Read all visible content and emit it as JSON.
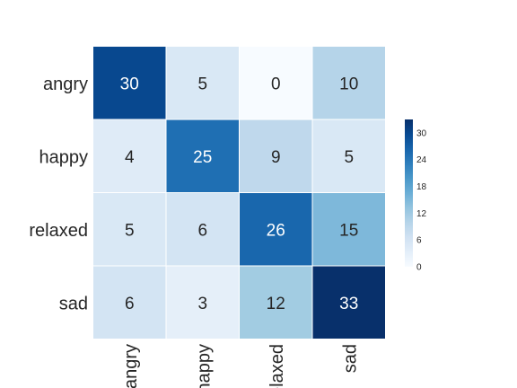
{
  "chart_data": {
    "type": "heatmap",
    "title": "",
    "xlabel": "",
    "ylabel": "",
    "rows": [
      "angry",
      "happy",
      "relaxed",
      "sad"
    ],
    "columns": [
      "angry",
      "happy",
      "relaxed",
      "sad"
    ],
    "values": [
      [
        30,
        5,
        0,
        10
      ],
      [
        4,
        25,
        9,
        5
      ],
      [
        5,
        6,
        26,
        15
      ],
      [
        6,
        3,
        12,
        33
      ]
    ],
    "colormap": "Blues",
    "vmin": 0,
    "vmax": 33,
    "colorbar_ticks": [
      0,
      6,
      12,
      18,
      24,
      30
    ],
    "annotated": true,
    "grid": false,
    "colorbar_position": "right"
  }
}
